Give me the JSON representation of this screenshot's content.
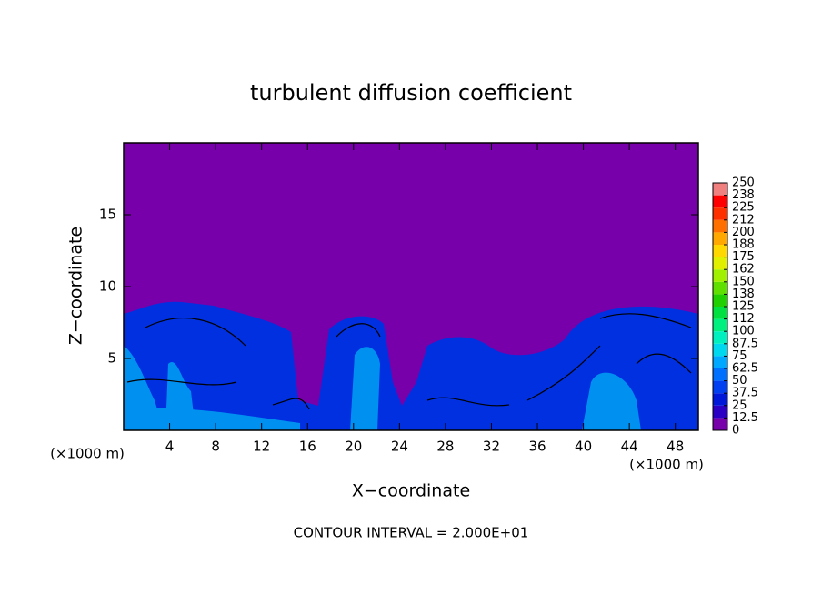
{
  "chart_data": {
    "type": "contour",
    "title": "turbulent diffusion coefficient",
    "x_label": "X−coordinate",
    "y_label": "Z−coordinate",
    "x_unit_label": "(×1000 m)",
    "footnote": "CONTOUR INTERVAL = 2.000E+01",
    "xlim": [
      0,
      50
    ],
    "xticks": [
      4,
      8,
      12,
      16,
      20,
      24,
      28,
      32,
      36,
      40,
      44,
      48
    ],
    "ylim": [
      0,
      20
    ],
    "yticks": [
      5,
      10,
      15
    ],
    "colorbar": {
      "levels": [
        0,
        12.5,
        25,
        37.5,
        50,
        62.5,
        75,
        87.5,
        100,
        {
          "value": 112.5,
          "label": "112"
        },
        125,
        {
          "value": 137.5,
          "label": "138"
        },
        150,
        {
          "value": 162.5,
          "label": "162"
        },
        175,
        {
          "value": 187.5,
          "label": "188"
        },
        200,
        {
          "value": 212.5,
          "label": "212"
        },
        225,
        {
          "value": 237.5,
          "label": "238"
        },
        250
      ],
      "colors": [
        "#7800aa",
        "#2c00c4",
        "#0018d8",
        "#0040f0",
        "#0070ff",
        "#00a8ff",
        "#00d8f0",
        "#00f0c0",
        "#00f080",
        "#00e040",
        "#20d000",
        "#60e000",
        "#a0f000",
        "#e0f000",
        "#ffd800",
        "#ffa800",
        "#ff7000",
        "#ff3000",
        "#ff0000",
        "#f08080"
      ]
    }
  }
}
